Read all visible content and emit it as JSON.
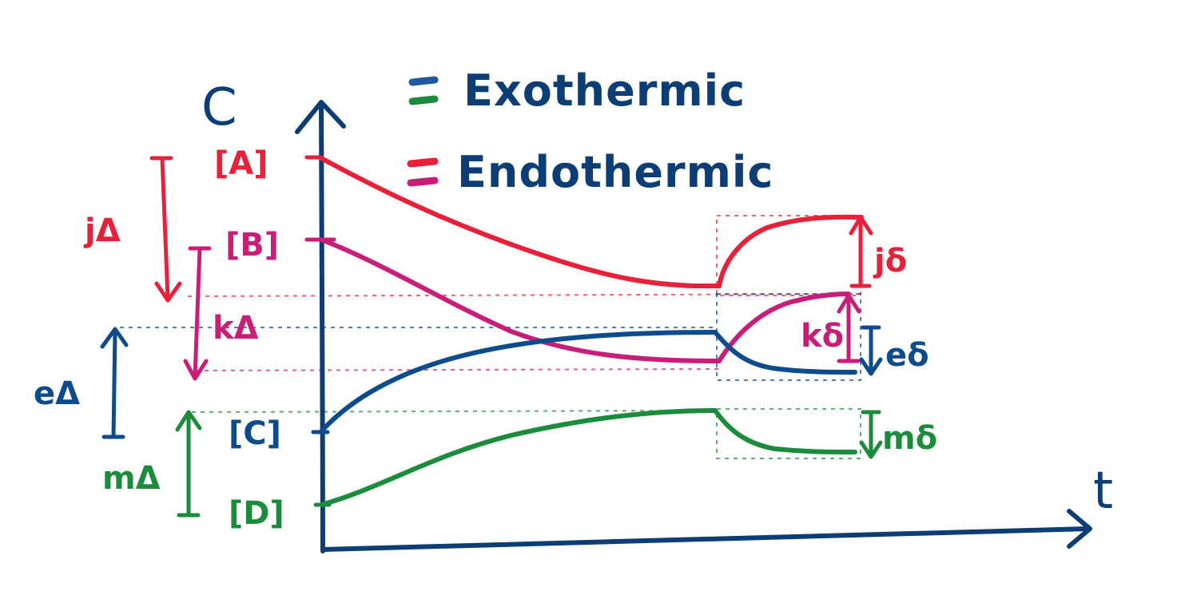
{
  "colors": {
    "axes": "#0c3d74",
    "red": "#e8213a",
    "magenta": "#c81e78",
    "blue": "#0c4b8c",
    "green": "#1b8c3c",
    "legend_dash_blue": "#1f5aa0"
  },
  "axes": {
    "y_label": "C",
    "x_label": "t"
  },
  "legend": {
    "exothermic": "Exothermic",
    "endothermic": "Endothermic"
  },
  "species": {
    "A": "[A]",
    "B": "[B]",
    "C": "[C]",
    "D": "[D]"
  },
  "deltas": {
    "j_left": "jΔ",
    "k_left": "kΔ",
    "e_left": "eΔ",
    "m_left": "mΔ",
    "j_right": "jδ",
    "k_right": "kδ",
    "e_right": "eδ",
    "m_right": "mδ"
  }
}
